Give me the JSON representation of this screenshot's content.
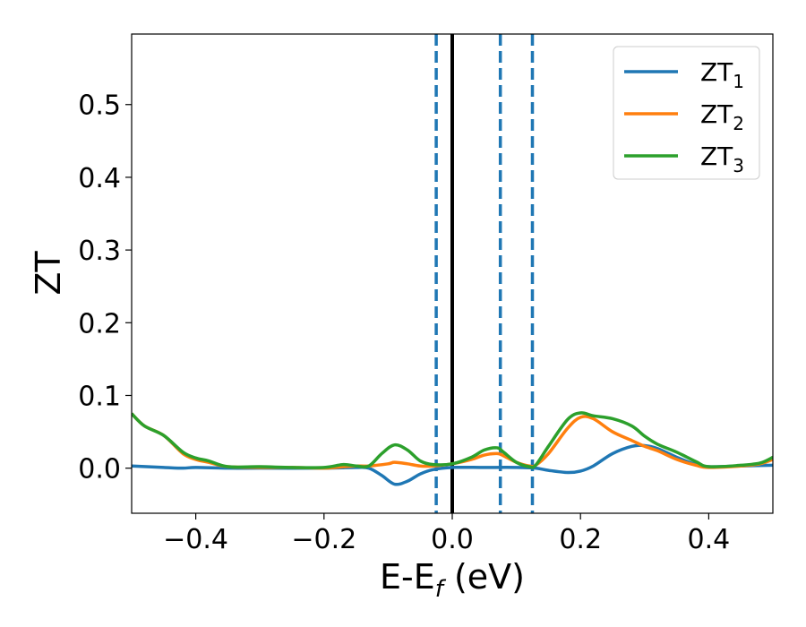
{
  "chart_data": {
    "type": "line",
    "xlabel": {
      "main": "E-E",
      "sub": "f",
      "unit": " (eV)"
    },
    "ylabel": "ZT",
    "xlim": [
      -0.5,
      0.5
    ],
    "ylim": [
      -0.062,
      0.597
    ],
    "xticks": [
      -0.4,
      -0.2,
      0.0,
      0.2,
      0.4
    ],
    "xtick_labels": [
      "−0.4",
      "−0.2",
      "0.0",
      "0.2",
      "0.4"
    ],
    "yticks": [
      0.0,
      0.1,
      0.2,
      0.3,
      0.4,
      0.5
    ],
    "ytick_labels": [
      "0.0",
      "0.1",
      "0.2",
      "0.3",
      "0.4",
      "0.5"
    ],
    "grid": false,
    "legend": "top-right",
    "vlines": [
      {
        "x": 0.0,
        "style": "solid",
        "color": "#000000"
      },
      {
        "x": -0.025,
        "style": "dashed",
        "color": "#1f77b4"
      },
      {
        "x": 0.075,
        "style": "dashed",
        "color": "#1f77b4"
      },
      {
        "x": 0.125,
        "style": "dashed",
        "color": "#1f77b4"
      }
    ],
    "series": [
      {
        "name": "ZT",
        "sub": "1",
        "color": "#1f77b4",
        "x": [
          -0.5,
          -0.45,
          -0.42,
          -0.4,
          -0.35,
          -0.3,
          -0.2,
          -0.15,
          -0.13,
          -0.11,
          -0.09,
          -0.07,
          -0.05,
          -0.03,
          0.0,
          0.05,
          0.1,
          0.13,
          0.15,
          0.18,
          0.2,
          0.22,
          0.25,
          0.28,
          0.3,
          0.32,
          0.35,
          0.38,
          0.4,
          0.45,
          0.5
        ],
        "y": [
          0.003,
          0.001,
          0.0,
          0.001,
          0.0,
          0.0,
          0.0,
          0.001,
          0.0,
          -0.01,
          -0.022,
          -0.018,
          -0.008,
          -0.002,
          0.001,
          0.001,
          0.001,
          0.0,
          -0.003,
          -0.006,
          -0.004,
          0.003,
          0.02,
          0.03,
          0.031,
          0.027,
          0.015,
          0.005,
          0.002,
          0.003,
          0.004
        ]
      },
      {
        "name": "ZT",
        "sub": "2",
        "color": "#ff7f0e",
        "x": [
          -0.5,
          -0.48,
          -0.45,
          -0.42,
          -0.4,
          -0.38,
          -0.35,
          -0.3,
          -0.25,
          -0.2,
          -0.17,
          -0.15,
          -0.13,
          -0.1,
          -0.09,
          -0.07,
          -0.05,
          -0.03,
          0.0,
          0.03,
          0.05,
          0.07,
          0.08,
          0.1,
          0.12,
          0.13,
          0.15,
          0.18,
          0.2,
          0.22,
          0.25,
          0.28,
          0.3,
          0.32,
          0.35,
          0.38,
          0.4,
          0.45,
          0.48,
          0.5
        ],
        "y": [
          0.075,
          0.058,
          0.045,
          0.02,
          0.012,
          0.008,
          0.002,
          0.001,
          0.001,
          0.0,
          0.002,
          0.003,
          0.003,
          0.006,
          0.008,
          0.006,
          0.003,
          0.003,
          0.006,
          0.012,
          0.018,
          0.02,
          0.017,
          0.008,
          0.003,
          0.004,
          0.02,
          0.055,
          0.07,
          0.068,
          0.05,
          0.038,
          0.03,
          0.024,
          0.012,
          0.004,
          0.001,
          0.003,
          0.006,
          0.012
        ]
      },
      {
        "name": "ZT",
        "sub": "3",
        "color": "#2ca02c",
        "x": [
          -0.5,
          -0.48,
          -0.45,
          -0.42,
          -0.4,
          -0.38,
          -0.35,
          -0.3,
          -0.25,
          -0.2,
          -0.17,
          -0.15,
          -0.13,
          -0.11,
          -0.09,
          -0.07,
          -0.05,
          -0.03,
          0.0,
          0.03,
          0.05,
          0.07,
          0.08,
          0.1,
          0.12,
          0.13,
          0.15,
          0.18,
          0.2,
          0.22,
          0.25,
          0.28,
          0.3,
          0.32,
          0.35,
          0.38,
          0.4,
          0.45,
          0.48,
          0.5
        ],
        "y": [
          0.075,
          0.058,
          0.045,
          0.022,
          0.014,
          0.01,
          0.002,
          0.002,
          0.001,
          0.001,
          0.005,
          0.003,
          0.003,
          0.02,
          0.032,
          0.025,
          0.01,
          0.005,
          0.006,
          0.015,
          0.025,
          0.028,
          0.022,
          0.008,
          0.002,
          0.004,
          0.03,
          0.067,
          0.076,
          0.072,
          0.068,
          0.058,
          0.044,
          0.033,
          0.022,
          0.009,
          0.002,
          0.004,
          0.007,
          0.015
        ]
      }
    ]
  }
}
